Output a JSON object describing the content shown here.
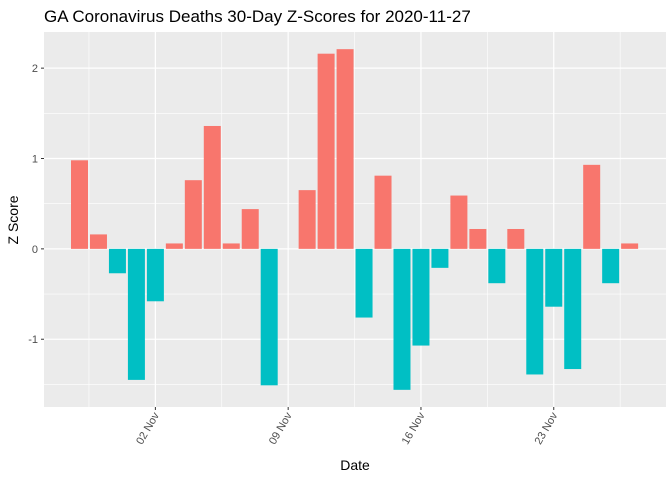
{
  "chart_data": {
    "type": "bar",
    "title": "GA Coronavirus Deaths 30-Day Z-Scores for 2020-11-27",
    "xlabel": "Date",
    "ylabel": "Z Score",
    "x_ticks": [
      "02 Nov",
      "09 Nov",
      "16 Nov",
      "23 Nov"
    ],
    "y_ticks": [
      "-1",
      "0",
      "1",
      "2"
    ],
    "ylim": [
      -1.75,
      2.4
    ],
    "grid": true,
    "legend": "none",
    "colors": {
      "positive": "#F8766D",
      "negative": "#00BFC4",
      "panel": "#EBEBEB",
      "grid": "#FFFFFF"
    },
    "x": [
      "2020-10-29",
      "2020-10-30",
      "2020-10-31",
      "2020-11-01",
      "2020-11-02",
      "2020-11-03",
      "2020-11-04",
      "2020-11-05",
      "2020-11-06",
      "2020-11-07",
      "2020-11-08",
      "2020-11-09",
      "2020-11-10",
      "2020-11-11",
      "2020-11-12",
      "2020-11-13",
      "2020-11-14",
      "2020-11-15",
      "2020-11-16",
      "2020-11-17",
      "2020-11-18",
      "2020-11-19",
      "2020-11-20",
      "2020-11-21",
      "2020-11-22",
      "2020-11-23",
      "2020-11-24",
      "2020-11-25",
      "2020-11-26",
      "2020-11-27"
    ],
    "values": [
      0.98,
      0.16,
      -0.27,
      -1.45,
      -0.58,
      0.06,
      0.76,
      1.36,
      0.06,
      0.44,
      -1.51,
      0.0,
      0.65,
      2.16,
      2.21,
      -0.76,
      0.81,
      -1.56,
      -1.07,
      -0.21,
      0.59,
      0.22,
      -0.38,
      0.22,
      -1.39,
      -0.64,
      -1.33,
      0.93,
      -0.38,
      0.06
    ]
  }
}
